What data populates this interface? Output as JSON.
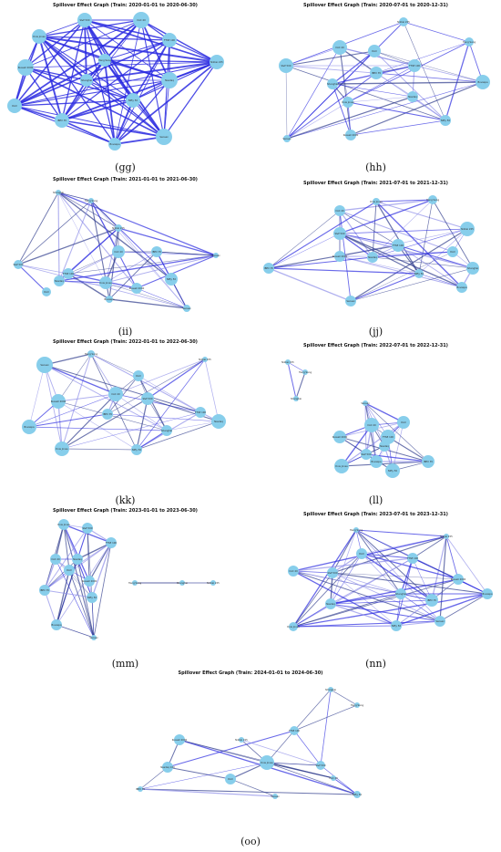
{
  "colors": {
    "node": "#87CEEB",
    "edge_strong": "#2a2ae0",
    "edge_dark": "#2e3a8c",
    "edge_light": "#8f8fe8"
  },
  "panels": [
    {
      "id": "gg",
      "title": "Spillover Effect Graph (Train: 2020-01-01 to 2020-06-30)",
      "label": "(gg)",
      "nodes": [
        "S&P 500",
        "Dow Jones",
        "CAC 40",
        "FTSE 100",
        "Hang Seng",
        "Russell 2000",
        "Nikkei 225",
        "Nasdaq",
        "Shanghai",
        "Nifty 50",
        "DAX",
        "IBEX 35",
        "Bovespa",
        "Sensex"
      ]
    },
    {
      "id": "hh",
      "title": "Spillover Effect Graph (Train: 2020-07-01 to 2020-12-31)",
      "label": "(hh)",
      "nodes": [
        "Nikkei 225",
        "Hang Seng",
        "CAC 40",
        "DAX",
        "S&P 500",
        "FTSE 100",
        "IBEX 35",
        "Bovespa",
        "Nasdaq",
        "Dow Jones",
        "Shanghai",
        "Nifty 50",
        "Russell 2000",
        "Sensex"
      ]
    },
    {
      "id": "ii",
      "title": "Spillover Effect Graph (Train: 2021-01-01 to 2021-06-30)",
      "label": "(ii)",
      "nodes": [
        "Shanghai",
        "Hang Seng",
        "Nikkei 225",
        "CAC 40",
        "FTSE 100",
        "IBEX 35",
        "S&P 500",
        "Nasdaq",
        "Dow Jones",
        "Nifty 50",
        "DAX",
        "Russell 2000",
        "Bovespa",
        "Sensex",
        "Sensex"
      ]
    },
    {
      "id": "jj",
      "title": "Spillover Effect Graph (Train: 2021-07-01 to 2021-12-31)",
      "label": "(jj)",
      "nodes": [
        "CAC 40",
        "Dow Jones",
        "Hang Seng",
        "Nikkei 225",
        "FTSE 100",
        "S&P 500",
        "DAX",
        "Russell 2000",
        "Nasdaq",
        "Shanghai",
        "Nifty 50",
        "IBEX 35",
        "Bovespa",
        "Sensex"
      ]
    },
    {
      "id": "kk",
      "title": "Spillover Effect Graph (Train: 2022-01-01 to 2022-06-30)",
      "label": "(kk)",
      "nodes": [
        "Nikkei 225",
        "Hang Seng",
        "Sensex",
        "DAX",
        "CAC 40",
        "Russell 2000",
        "S&P 500",
        "FTSE 100",
        "IBEX 35",
        "Nasdaq",
        "Bovespa",
        "Shanghai",
        "Dow Jones",
        "Nifty 50"
      ]
    },
    {
      "id": "ll",
      "title": "Spillover Effect Graph (Train: 2022-07-01 to 2022-12-31)",
      "label": "(ll)",
      "nodes": [
        "Nikkei 225",
        "Hang Seng",
        "Shanghai",
        "Sensex",
        "CAC 40",
        "DAX",
        "Russell 2000",
        "FTSE 100",
        "Nasdaq",
        "S&P 500",
        "Dow Jones",
        "Bovespa",
        "IBEX 35",
        "Nifty 50"
      ]
    },
    {
      "id": "mm",
      "title": "Spillover Effect Graph (Train: 2023-01-01 to 2023-06-30)",
      "label": "(mm)",
      "nodes": [
        "Dow Jones",
        "S&P 500",
        "FTSE 100",
        "CAC 40",
        "Nasdaq",
        "DAX",
        "Russell 2000",
        "IBEX 35",
        "Nifty 50",
        "Bovespa",
        "Hang Seng",
        "Shanghai",
        "Nikkei 225",
        "Sensex"
      ]
    },
    {
      "id": "nn",
      "title": "Spillover Effect Graph (Train: 2023-07-01 to 2023-12-31)",
      "label": "(nn)",
      "nodes": [
        "Hang Seng",
        "Nikkei 225",
        "DAX",
        "FTSE 100",
        "CAC 40",
        "S&P 500",
        "Russell 2000",
        "Bovespa",
        "Nasdaq",
        "Shanghai",
        "IBEX 35",
        "Dow Jones",
        "Nifty 50",
        "Sensex"
      ]
    },
    {
      "id": "oo",
      "title": "Spillover Effect Graph (Train: 2024-01-01 to 2024-06-30)",
      "label": "(oo)",
      "nodes": [
        "Shanghai",
        "Hang Seng",
        "FTSE 100",
        "Russell 2000",
        "Nikkei 225",
        "Nasdaq 100",
        "Dow Jones",
        "DAX",
        "S&P 500",
        "CAC 40",
        "IBEX 35",
        "Nifty 50",
        "Sensex"
      ]
    }
  ]
}
